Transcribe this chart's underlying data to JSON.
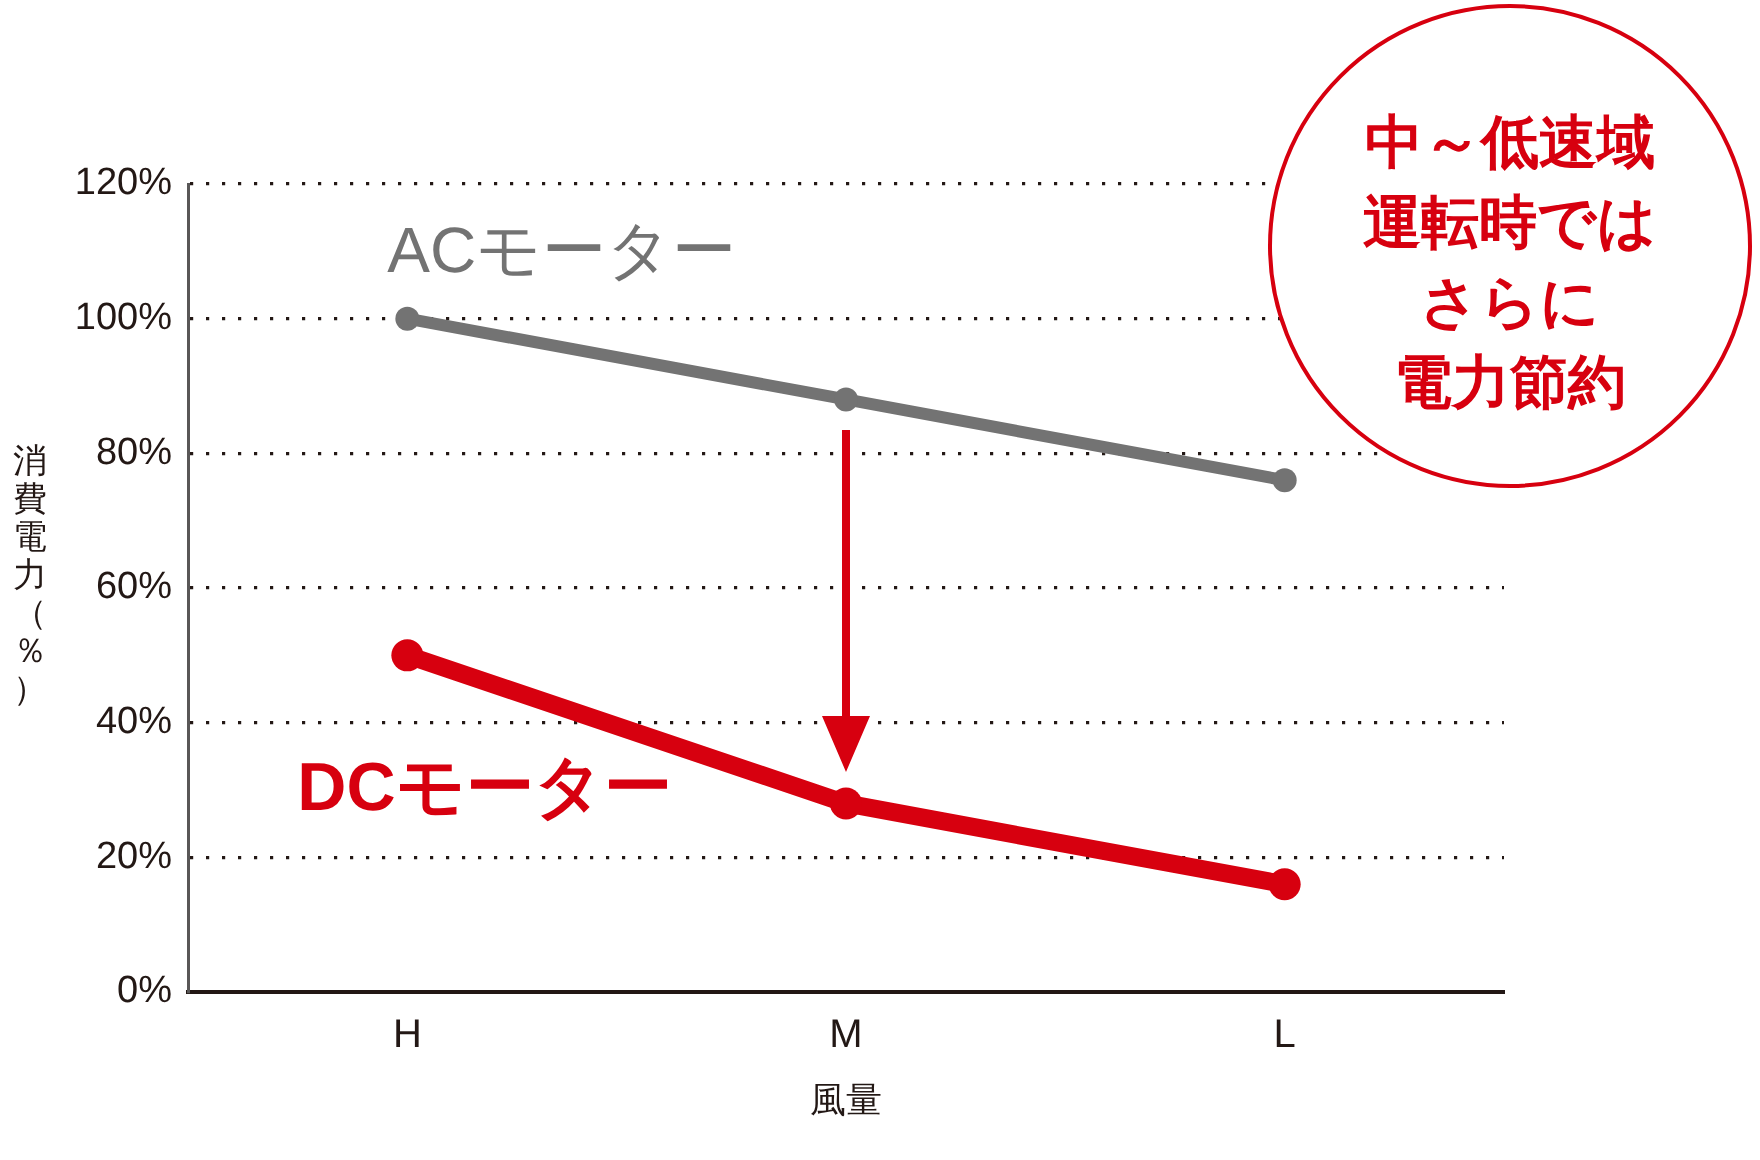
{
  "chart_data": {
    "type": "line",
    "categories": [
      "H",
      "M",
      "L"
    ],
    "series": [
      {
        "name": "ACモーター",
        "color": "#737373",
        "values": [
          100,
          88,
          76
        ]
      },
      {
        "name": "DCモーター",
        "color": "#d7000f",
        "values": [
          50,
          28,
          16
        ]
      }
    ],
    "xlabel": "風量",
    "ylabel": "消費電力（％）",
    "ylim": [
      0,
      120
    ],
    "yticks": [
      {
        "value": 0,
        "label": "0%"
      },
      {
        "value": 20,
        "label": "20%"
      },
      {
        "value": 40,
        "label": "40%"
      },
      {
        "value": 60,
        "label": "60%"
      },
      {
        "value": 80,
        "label": "80%"
      },
      {
        "value": 100,
        "label": "100%"
      },
      {
        "value": 120,
        "label": "120%"
      }
    ],
    "grid": "y",
    "marker": "circle",
    "line_style": "solid",
    "annotations": [
      "中～低速域",
      "運転時では",
      "さらに",
      "電力節約"
    ]
  }
}
